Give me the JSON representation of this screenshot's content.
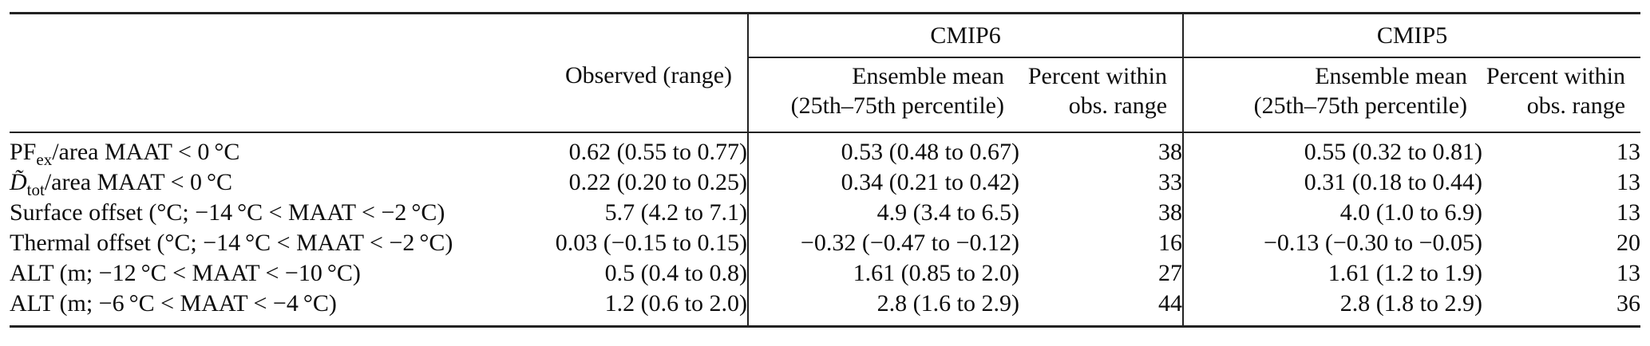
{
  "table": {
    "groups": {
      "cmip6": "CMIP6",
      "cmip5": "CMIP5"
    },
    "headers": {
      "observed": "Observed (range)",
      "ensemble_line1": "Ensemble mean",
      "ensemble_line2": "(25th–75th percentile)",
      "percent_line1": "Percent within",
      "percent_line2": "obs. range"
    },
    "rows": [
      {
        "label_main": "PF",
        "label_sub": "ex",
        "label_rest": "/area MAAT < 0 °C",
        "observed": "0.62 (0.55 to 0.77)",
        "cmip6_mean": "0.53 (0.48 to 0.67)",
        "cmip6_pct": "38",
        "cmip5_mean": "0.55 (0.32 to 0.81)",
        "cmip5_pct": "13"
      },
      {
        "label_main": "D̃",
        "label_sub": "tot",
        "label_rest": "/area MAAT < 0 °C",
        "observed": "0.22 (0.20 to 0.25)",
        "cmip6_mean": "0.34 (0.21 to 0.42)",
        "cmip6_pct": "33",
        "cmip5_mean": "0.31 (0.18 to 0.44)",
        "cmip5_pct": "13"
      },
      {
        "label_main": "Surface offset (°C; −14 °C < MAAT < −2 °C)",
        "label_sub": "",
        "label_rest": "",
        "observed": "5.7 (4.2 to 7.1)",
        "cmip6_mean": "4.9 (3.4 to 6.5)",
        "cmip6_pct": "38",
        "cmip5_mean": "4.0 (1.0 to 6.9)",
        "cmip5_pct": "13"
      },
      {
        "label_main": "Thermal offset (°C; −14 °C < MAAT < −2 °C)",
        "label_sub": "",
        "label_rest": "",
        "observed": "0.03 (−0.15 to 0.15)",
        "cmip6_mean": "−0.32 (−0.47 to −0.12)",
        "cmip6_pct": "16",
        "cmip5_mean": "−0.13 (−0.30 to −0.05)",
        "cmip5_pct": "20"
      },
      {
        "label_main": "ALT (m; −12 °C < MAAT < −10 °C)",
        "label_sub": "",
        "label_rest": "",
        "observed": "0.5 (0.4 to 0.8)",
        "cmip6_mean": "1.61 (0.85 to 2.0)",
        "cmip6_pct": "27",
        "cmip5_mean": "1.61 (1.2 to 1.9)",
        "cmip5_pct": "13"
      },
      {
        "label_main": "ALT (m; −6 °C < MAAT < −4 °C)",
        "label_sub": "",
        "label_rest": "",
        "observed": "1.2 (0.6 to 2.0)",
        "cmip6_mean": "2.8 (1.6 to 2.9)",
        "cmip6_pct": "44",
        "cmip5_mean": "2.8 (1.8 to 2.9)",
        "cmip5_pct": "36"
      }
    ]
  }
}
